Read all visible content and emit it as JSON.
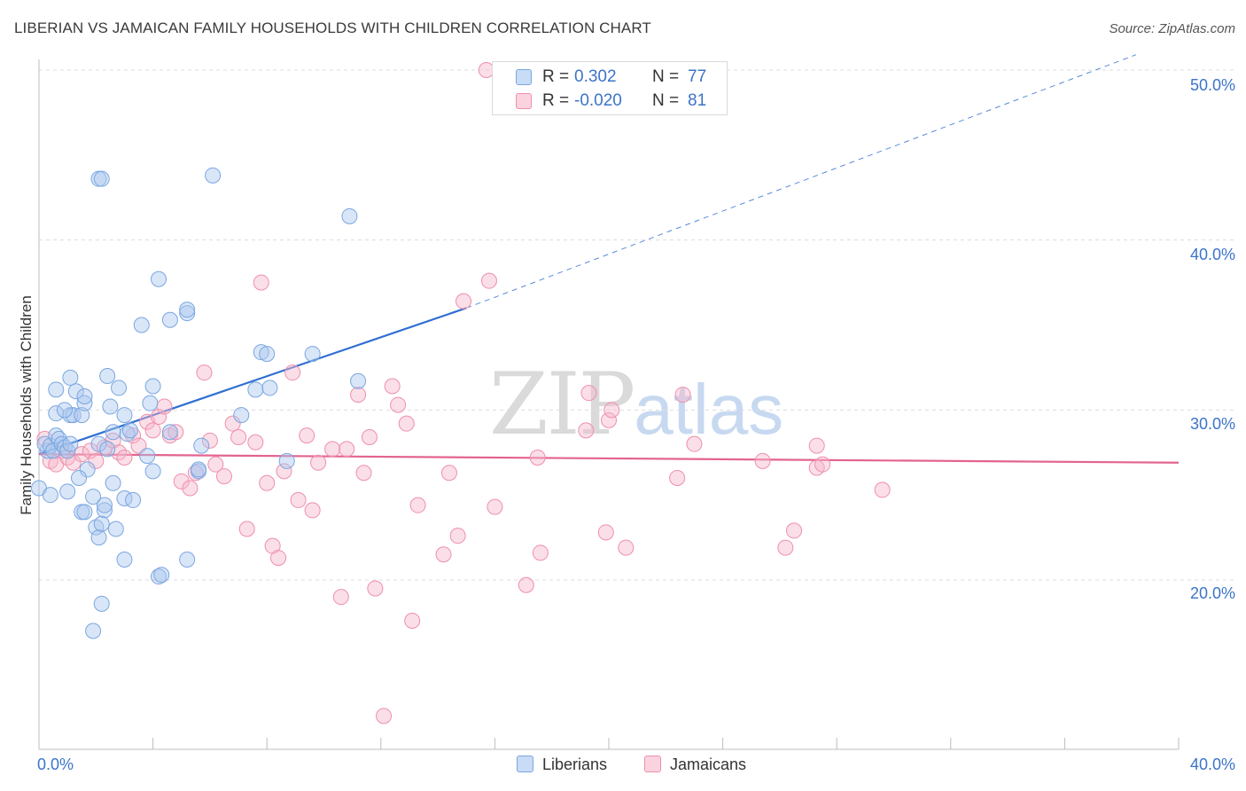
{
  "title": "LIBERIAN VS JAMAICAN FAMILY HOUSEHOLDS WITH CHILDREN CORRELATION CHART",
  "source": "Source: ZipAtlas.com",
  "watermark": {
    "zip": "ZIP",
    "atlas": "atlas"
  },
  "legend_box": {
    "rows": [
      {
        "r_label": "R =",
        "r_value": "0.302",
        "n_label": "N =",
        "n_value": "77",
        "color": "#aac8f0"
      },
      {
        "r_label": "R =",
        "r_value": "-0.020",
        "n_label": "N =",
        "n_value": "81",
        "color": "#f7b8cb"
      }
    ]
  },
  "bottom_legend": {
    "liberians": "Liberians",
    "jamaicans": "Jamaicans"
  },
  "colors": {
    "liberian_fill": "#aac8f0",
    "liberian_stroke": "#7aa6e0",
    "liberian_line": "#2f6fd1",
    "jamaican_fill": "#f7b8cb",
    "jamaican_stroke": "#ee8fab",
    "jamaican_line": "#e3648f",
    "tick_text": "#3b74c8",
    "grid": "#dcdcdc"
  },
  "chart_data": {
    "type": "scatter",
    "title": "LIBERIAN VS JAMAICAN FAMILY HOUSEHOLDS WITH CHILDREN CORRELATION CHART",
    "xlabel": "",
    "ylabel": "Family Households with Children",
    "xlim": [
      0,
      40
    ],
    "ylim": [
      10,
      52
    ],
    "x_tick_labels": [
      "0.0%",
      "40.0%"
    ],
    "y_ticks": [
      20,
      30,
      40,
      50
    ],
    "y_tick_labels": [
      "20.0%",
      "30.0%",
      "40.0%",
      "50.0%"
    ],
    "grid": true,
    "legend_position": "top-center",
    "series": [
      {
        "name": "Liberians",
        "R": 0.302,
        "N": 77,
        "trend": {
          "x0": 0,
          "y0": 27.4,
          "x1": 15,
          "y1": 36.0,
          "dashed_to_x": 38.5,
          "dashed_to_y": 50.9
        },
        "points": [
          [
            0.0,
            25.4
          ],
          [
            0.3,
            27.6
          ],
          [
            0.2,
            28.0
          ],
          [
            0.4,
            27.9
          ],
          [
            0.5,
            27.6
          ],
          [
            0.6,
            28.5
          ],
          [
            0.6,
            29.8
          ],
          [
            0.7,
            28.3
          ],
          [
            0.8,
            28.0
          ],
          [
            0.9,
            27.8
          ],
          [
            0.4,
            25.0
          ],
          [
            1.1,
            29.7
          ],
          [
            1.2,
            29.7
          ],
          [
            1.3,
            31.1
          ],
          [
            0.6,
            31.2
          ],
          [
            1.1,
            31.9
          ],
          [
            1.5,
            29.7
          ],
          [
            1.6,
            30.4
          ],
          [
            1.6,
            30.8
          ],
          [
            1.0,
            27.6
          ],
          [
            1.7,
            26.5
          ],
          [
            1.4,
            26.0
          ],
          [
            1.5,
            24.0
          ],
          [
            1.9,
            24.9
          ],
          [
            1.6,
            24.0
          ],
          [
            2.0,
            23.1
          ],
          [
            2.3,
            24.1
          ],
          [
            2.1,
            22.5
          ],
          [
            2.3,
            24.4
          ],
          [
            2.2,
            23.3
          ],
          [
            2.1,
            28.0
          ],
          [
            2.4,
            27.7
          ],
          [
            2.5,
            30.2
          ],
          [
            2.4,
            32.0
          ],
          [
            2.6,
            28.7
          ],
          [
            2.8,
            31.3
          ],
          [
            2.6,
            25.7
          ],
          [
            3.0,
            29.7
          ],
          [
            3.1,
            28.6
          ],
          [
            3.2,
            28.8
          ],
          [
            3.0,
            24.8
          ],
          [
            3.3,
            24.7
          ],
          [
            3.0,
            21.2
          ],
          [
            3.8,
            27.3
          ],
          [
            4.0,
            31.4
          ],
          [
            3.9,
            30.4
          ],
          [
            4.2,
            37.7
          ],
          [
            4.0,
            26.4
          ],
          [
            3.6,
            35.0
          ],
          [
            4.6,
            28.7
          ],
          [
            4.6,
            35.3
          ],
          [
            5.2,
            35.7
          ],
          [
            5.2,
            35.9
          ],
          [
            5.6,
            26.4
          ],
          [
            5.7,
            27.9
          ],
          [
            5.6,
            26.5
          ],
          [
            6.1,
            43.8
          ],
          [
            7.1,
            29.7
          ],
          [
            7.6,
            31.2
          ],
          [
            7.8,
            33.4
          ],
          [
            8.0,
            33.3
          ],
          [
            8.1,
            31.3
          ],
          [
            8.7,
            27.0
          ],
          [
            9.6,
            33.3
          ],
          [
            10.9,
            41.4
          ],
          [
            11.2,
            31.7
          ],
          [
            4.2,
            20.2
          ],
          [
            4.3,
            20.3
          ],
          [
            5.2,
            21.2
          ],
          [
            2.2,
            18.6
          ],
          [
            1.9,
            17.0
          ],
          [
            2.1,
            43.6
          ],
          [
            2.2,
            43.6
          ],
          [
            1.1,
            28.0
          ],
          [
            0.9,
            30.0
          ],
          [
            1.0,
            25.2
          ],
          [
            2.7,
            23.0
          ]
        ]
      },
      {
        "name": "Jamaicans",
        "R": -0.02,
        "N": 81,
        "trend": {
          "x0": 0,
          "y0": 27.4,
          "x1": 40,
          "y1": 26.9
        },
        "points": [
          [
            0.2,
            28.3
          ],
          [
            0.4,
            27.0
          ],
          [
            0.6,
            26.8
          ],
          [
            0.8,
            27.6
          ],
          [
            1.0,
            27.2
          ],
          [
            1.2,
            26.9
          ],
          [
            1.5,
            27.4
          ],
          [
            1.8,
            27.6
          ],
          [
            2.0,
            27.0
          ],
          [
            2.3,
            27.8
          ],
          [
            2.6,
            28.2
          ],
          [
            2.8,
            27.5
          ],
          [
            3.0,
            27.2
          ],
          [
            3.3,
            28.5
          ],
          [
            3.5,
            27.9
          ],
          [
            3.8,
            29.3
          ],
          [
            4.0,
            28.8
          ],
          [
            4.2,
            29.6
          ],
          [
            4.4,
            30.2
          ],
          [
            4.6,
            28.5
          ],
          [
            4.8,
            28.7
          ],
          [
            5.0,
            25.8
          ],
          [
            5.3,
            25.4
          ],
          [
            5.5,
            26.3
          ],
          [
            5.8,
            32.2
          ],
          [
            6.0,
            28.2
          ],
          [
            6.2,
            26.8
          ],
          [
            6.5,
            26.1
          ],
          [
            6.8,
            29.2
          ],
          [
            7.0,
            28.4
          ],
          [
            7.3,
            23.0
          ],
          [
            7.6,
            28.1
          ],
          [
            7.8,
            37.5
          ],
          [
            8.0,
            25.7
          ],
          [
            8.2,
            22.0
          ],
          [
            8.4,
            21.3
          ],
          [
            8.6,
            26.4
          ],
          [
            8.9,
            32.2
          ],
          [
            9.1,
            24.7
          ],
          [
            9.4,
            28.5
          ],
          [
            9.6,
            24.1
          ],
          [
            9.8,
            26.9
          ],
          [
            10.3,
            27.7
          ],
          [
            10.6,
            19.0
          ],
          [
            10.8,
            27.7
          ],
          [
            11.2,
            30.9
          ],
          [
            11.4,
            26.3
          ],
          [
            11.6,
            28.4
          ],
          [
            11.8,
            19.5
          ],
          [
            12.1,
            12.0
          ],
          [
            12.4,
            31.4
          ],
          [
            12.6,
            30.3
          ],
          [
            12.9,
            29.2
          ],
          [
            13.1,
            17.6
          ],
          [
            13.3,
            24.4
          ],
          [
            14.2,
            21.5
          ],
          [
            14.4,
            26.3
          ],
          [
            14.7,
            22.6
          ],
          [
            14.9,
            36.4
          ],
          [
            15.7,
            50.0
          ],
          [
            15.8,
            37.6
          ],
          [
            16.0,
            24.3
          ],
          [
            17.1,
            19.7
          ],
          [
            17.5,
            27.2
          ],
          [
            17.6,
            21.6
          ],
          [
            19.2,
            28.8
          ],
          [
            19.3,
            31.0
          ],
          [
            19.9,
            22.8
          ],
          [
            20.0,
            29.4
          ],
          [
            20.1,
            30.0
          ],
          [
            20.6,
            21.9
          ],
          [
            22.4,
            26.0
          ],
          [
            22.6,
            30.9
          ],
          [
            23.0,
            28.0
          ],
          [
            25.4,
            27.0
          ],
          [
            26.2,
            21.9
          ],
          [
            26.5,
            22.9
          ],
          [
            27.3,
            27.9
          ],
          [
            29.6,
            25.3
          ],
          [
            27.3,
            26.6
          ],
          [
            27.5,
            26.8
          ]
        ]
      }
    ]
  }
}
